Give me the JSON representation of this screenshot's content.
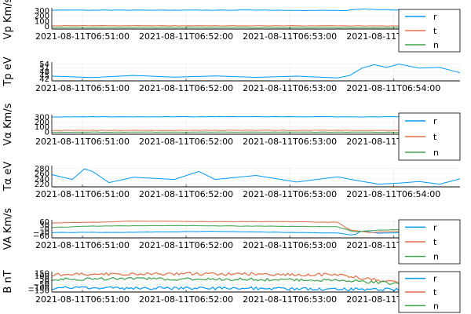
{
  "colors": {
    "r": "#009af9",
    "t": "#e26f46",
    "n": "#3da44d",
    "grid": "#ebebeb",
    "axis": "#000000"
  },
  "legend_labels": [
    "r",
    "t",
    "n"
  ],
  "x_tick_labels": [
    "2021-08-11T06:51:00",
    "2021-08-11T06:52:00",
    "2021-08-11T06:53:00",
    "2021-08-11T06:54:00"
  ],
  "chart_data": [
    {
      "type": "line",
      "ylabel": "Vp Km/s",
      "yticks": [
        "300",
        "200",
        "100",
        "0"
      ],
      "ylim": [
        -20,
        340
      ],
      "legend": "right",
      "series": [
        {
          "name": "r",
          "x": [
            0,
            0.47,
            0.55,
            0.72,
            0.76,
            0.83,
            1
          ],
          "values": [
            300,
            302,
            298,
            296,
            320,
            305,
            295
          ]
        },
        {
          "name": "t",
          "x": [
            0,
            0.72,
            1
          ],
          "values": [
            38,
            35,
            28
          ]
        },
        {
          "name": "n",
          "x": [
            0,
            0.72,
            1
          ],
          "values": [
            10,
            6,
            2
          ]
        }
      ]
    },
    {
      "type": "line",
      "ylabel": "Tp eV",
      "yticks": [
        "54",
        "51",
        "48",
        "45",
        "42"
      ],
      "ylim": [
        41,
        55
      ],
      "legend": "none",
      "series": [
        {
          "name": "r",
          "x": [
            0,
            0.1,
            0.2,
            0.3,
            0.4,
            0.5,
            0.6,
            0.7,
            0.73,
            0.76,
            0.79,
            0.82,
            0.85,
            0.9,
            0.95,
            1
          ],
          "values": [
            44.5,
            43.5,
            45,
            43.8,
            44.6,
            43.6,
            44.5,
            43.2,
            45,
            50.5,
            53,
            51,
            53.5,
            50.5,
            51,
            47
          ]
        }
      ]
    },
    {
      "type": "line",
      "ylabel": "Vα Km/s",
      "yticks": [
        "300",
        "200",
        "100",
        "0"
      ],
      "ylim": [
        -20,
        340
      ],
      "legend": "right",
      "series": [
        {
          "name": "r",
          "x": [
            0,
            0.5,
            1
          ],
          "values": [
            300,
            302,
            298
          ]
        },
        {
          "name": "t",
          "x": [
            0,
            0.5,
            1
          ],
          "values": [
            50,
            52,
            48
          ]
        },
        {
          "name": "n",
          "x": [
            0,
            0.5,
            1
          ],
          "values": [
            18,
            20,
            15
          ]
        }
      ]
    },
    {
      "type": "line",
      "ylabel": "Tα eV",
      "yticks": [
        "280",
        "260",
        "240",
        "220"
      ],
      "ylim": [
        212,
        292
      ],
      "legend": "none",
      "series": [
        {
          "name": "r",
          "x": [
            0,
            0.05,
            0.08,
            0.1,
            0.14,
            0.2,
            0.3,
            0.36,
            0.4,
            0.5,
            0.6,
            0.7,
            0.74,
            0.8,
            0.85,
            0.9,
            0.95,
            1
          ],
          "values": [
            258,
            240,
            280,
            270,
            228,
            248,
            240,
            270,
            240,
            255,
            230,
            250,
            238,
            222,
            226,
            232,
            222,
            242
          ]
        }
      ]
    },
    {
      "type": "line",
      "ylabel": "VA Km/s",
      "yticks": [
        "60",
        "30",
        "0",
        "−30",
        "−60"
      ],
      "ylim": [
        -72,
        70
      ],
      "legend": "right",
      "series": [
        {
          "name": "r",
          "x": [
            0,
            0.2,
            0.4,
            0.6,
            0.7,
            0.74,
            0.76,
            0.8,
            1
          ],
          "values": [
            -30,
            -28,
            -20,
            -30,
            -35,
            -50,
            -15,
            -35,
            -20
          ]
        },
        {
          "name": "t",
          "x": [
            0,
            0.1,
            0.2,
            0.4,
            0.6,
            0.7,
            0.73,
            0.78,
            0.85,
            1
          ],
          "values": [
            45,
            50,
            60,
            55,
            55,
            50,
            -10,
            -30,
            -20,
            -10
          ]
        },
        {
          "name": "n",
          "x": [
            0,
            0.1,
            0.3,
            0.5,
            0.7,
            0.74,
            0.8,
            1
          ],
          "values": [
            10,
            20,
            25,
            20,
            15,
            -25,
            -10,
            -5
          ]
        }
      ]
    },
    {
      "type": "line",
      "ylabel": "B nT",
      "yticks": [
        "150",
        "100",
        "50",
        "0",
        "−50",
        "−100",
        "−150"
      ],
      "ylim": [
        -170,
        170
      ],
      "legend": "right",
      "series": [
        {
          "name": "r",
          "x": [
            0,
            0.25,
            0.5,
            0.7,
            0.85,
            1
          ],
          "values": [
            -100,
            -105,
            -110,
            -120,
            -130,
            -115
          ]
        },
        {
          "name": "t",
          "x": [
            0,
            0.25,
            0.5,
            0.7,
            0.85,
            1
          ],
          "values": [
            120,
            135,
            130,
            115,
            -20,
            -60
          ]
        },
        {
          "name": "n",
          "x": [
            0,
            0.25,
            0.5,
            0.7,
            0.85,
            1
          ],
          "values": [
            45,
            50,
            40,
            30,
            -30,
            -45
          ]
        }
      ]
    }
  ]
}
